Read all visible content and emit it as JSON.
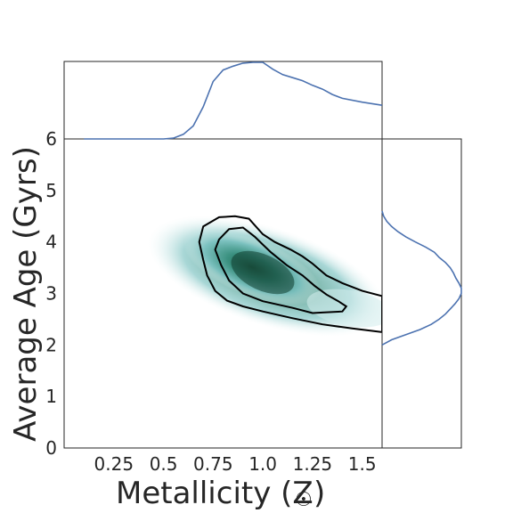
{
  "chart_data": {
    "type": "kde-joint",
    "xlabel": "Metallicity (Z",
    "xlabel_symbol": "☉",
    "xlabel_close": ")",
    "ylabel": "Average Age (Gyrs)",
    "xlim": [
      0.0,
      1.6
    ],
    "ylim": [
      0,
      6
    ],
    "xticks": [
      0.25,
      0.5,
      0.75,
      1.0,
      1.25,
      1.5
    ],
    "xtick_labels": [
      "0.25",
      "0.5",
      "0.75",
      "1.0",
      "1.25",
      "1.5"
    ],
    "yticks": [
      0,
      1,
      2,
      3,
      4,
      5,
      6
    ],
    "ytick_labels": [
      "0",
      "1",
      "2",
      "3",
      "4",
      "5",
      "6"
    ],
    "density_peak": {
      "x": 0.98,
      "y": 3.3
    },
    "contour_outer": [
      [
        0.7,
        4.3
      ],
      [
        0.78,
        4.48
      ],
      [
        0.86,
        4.5
      ],
      [
        0.93,
        4.45
      ],
      [
        1.0,
        4.15
      ],
      [
        1.06,
        4.0
      ],
      [
        1.14,
        3.85
      ],
      [
        1.2,
        3.72
      ],
      [
        1.25,
        3.58
      ],
      [
        1.32,
        3.35
      ],
      [
        1.4,
        3.2
      ],
      [
        1.5,
        3.05
      ],
      [
        1.6,
        2.95
      ],
      [
        1.6,
        2.25
      ],
      [
        1.45,
        2.32
      ],
      [
        1.3,
        2.4
      ],
      [
        1.15,
        2.52
      ],
      [
        1.0,
        2.65
      ],
      [
        0.9,
        2.75
      ],
      [
        0.82,
        2.86
      ],
      [
        0.76,
        3.05
      ],
      [
        0.72,
        3.35
      ],
      [
        0.7,
        3.65
      ],
      [
        0.68,
        4.0
      ],
      [
        0.7,
        4.3
      ]
    ],
    "contour_inner": [
      [
        0.78,
        4.05
      ],
      [
        0.83,
        4.25
      ],
      [
        0.9,
        4.28
      ],
      [
        0.96,
        4.1
      ],
      [
        1.0,
        3.95
      ],
      [
        1.04,
        3.8
      ],
      [
        1.12,
        3.55
      ],
      [
        1.2,
        3.35
      ],
      [
        1.26,
        3.15
      ],
      [
        1.32,
        2.98
      ],
      [
        1.38,
        2.85
      ],
      [
        1.42,
        2.75
      ],
      [
        1.4,
        2.65
      ],
      [
        1.3,
        2.63
      ],
      [
        1.25,
        2.62
      ],
      [
        1.15,
        2.72
      ],
      [
        1.0,
        2.85
      ],
      [
        0.9,
        3.0
      ],
      [
        0.83,
        3.25
      ],
      [
        0.79,
        3.55
      ],
      [
        0.76,
        3.85
      ],
      [
        0.78,
        4.05
      ]
    ],
    "x_marginal": {
      "x": [
        0.1,
        0.3,
        0.5,
        0.55,
        0.6,
        0.65,
        0.7,
        0.75,
        0.8,
        0.85,
        0.9,
        0.95,
        1.0,
        1.05,
        1.1,
        1.15,
        1.2,
        1.25,
        1.3,
        1.35,
        1.4,
        1.5,
        1.6
      ],
      "density": [
        0.0,
        0.0,
        0.0,
        0.01,
        0.06,
        0.17,
        0.42,
        0.75,
        0.9,
        0.95,
        0.99,
        1.0,
        1.0,
        0.91,
        0.84,
        0.8,
        0.76,
        0.7,
        0.65,
        0.58,
        0.53,
        0.48,
        0.44
      ]
    },
    "y_marginal": {
      "y": [
        2.0,
        2.1,
        2.2,
        2.3,
        2.4,
        2.5,
        2.6,
        2.7,
        2.8,
        2.9,
        3.0,
        3.1,
        3.2,
        3.3,
        3.4,
        3.5,
        3.6,
        3.7,
        3.8,
        3.9,
        4.0,
        4.1,
        4.2,
        4.3,
        4.4,
        4.5,
        4.6
      ],
      "density": [
        0.0,
        0.12,
        0.3,
        0.48,
        0.62,
        0.72,
        0.8,
        0.86,
        0.92,
        0.97,
        1.0,
        1.0,
        0.97,
        0.93,
        0.9,
        0.86,
        0.8,
        0.72,
        0.66,
        0.55,
        0.42,
        0.3,
        0.2,
        0.12,
        0.06,
        0.02,
        0.0
      ]
    },
    "colors": {
      "line": "#4c72b0",
      "contour": "#000000",
      "fill_dark": "#17523d",
      "fill_mid": "#2f8a78",
      "fill_light": "#cde9e8",
      "axis": "#262626"
    }
  }
}
